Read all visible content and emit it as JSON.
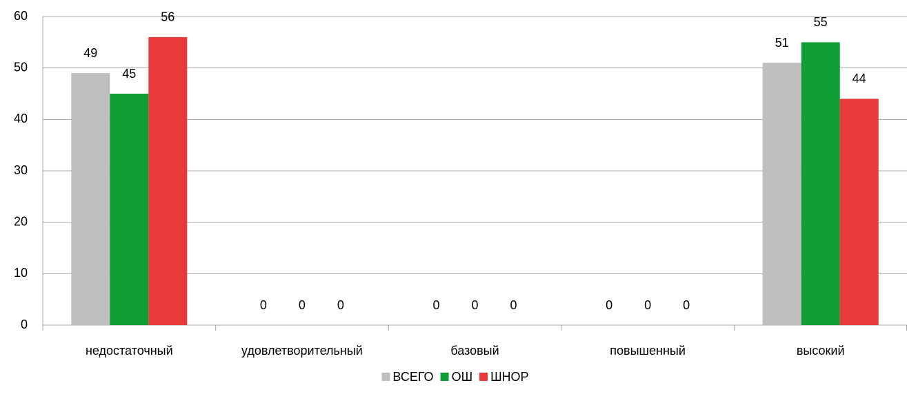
{
  "chart_data": {
    "type": "bar",
    "categories": [
      "недостаточный",
      "удовлетворительный",
      "базовый",
      "повышенный",
      "высокий"
    ],
    "series": [
      {
        "name": "ВСЕГО",
        "color": "#bfbfbf",
        "values": [
          49,
          0,
          0,
          0,
          51
        ]
      },
      {
        "name": "ОШ",
        "color": "#0f9d35",
        "values": [
          45,
          0,
          0,
          0,
          55
        ]
      },
      {
        "name": "ШНОР",
        "color": "#e8393b",
        "values": [
          56,
          0,
          0,
          0,
          44
        ]
      }
    ],
    "ylim": [
      0,
      60
    ],
    "yticks": [
      0,
      10,
      20,
      30,
      40,
      50,
      60
    ],
    "grid": true,
    "legend": "bottom"
  }
}
